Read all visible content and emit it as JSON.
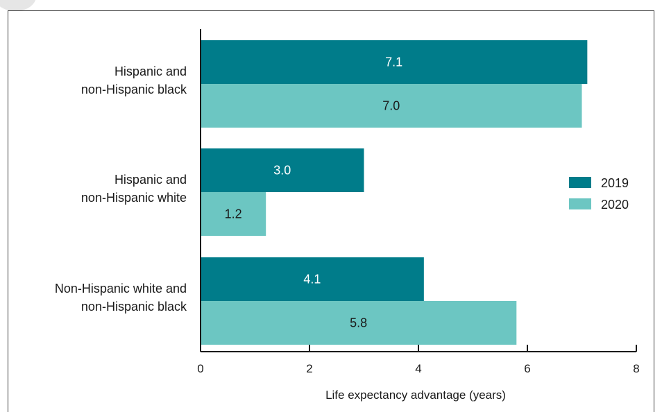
{
  "chart_data": {
    "type": "bar",
    "orientation": "horizontal",
    "categories": [
      [
        "Hispanic and",
        "non-Hispanic black"
      ],
      [
        "Hispanic and",
        "non-Hispanic white"
      ],
      [
        "Non-Hispanic white and",
        "non-Hispanic black"
      ]
    ],
    "series": [
      {
        "name": "2019",
        "values": [
          7.1,
          3.0,
          4.1
        ],
        "labels": [
          "7.1",
          "3.0",
          "4.1"
        ],
        "color": "#007c8a",
        "label_color": "#ffffff"
      },
      {
        "name": "2020",
        "values": [
          7.0,
          1.2,
          5.8
        ],
        "labels": [
          "7.0",
          "1.2",
          "5.8"
        ],
        "color": "#6cc6c2",
        "label_color": "#1a1a1a"
      }
    ],
    "xlabel": "Life expectancy advantage (years)",
    "xlim": [
      0,
      8
    ],
    "xticks": [
      0,
      2,
      4,
      6,
      8
    ],
    "grid": false,
    "legend_position": "right"
  }
}
